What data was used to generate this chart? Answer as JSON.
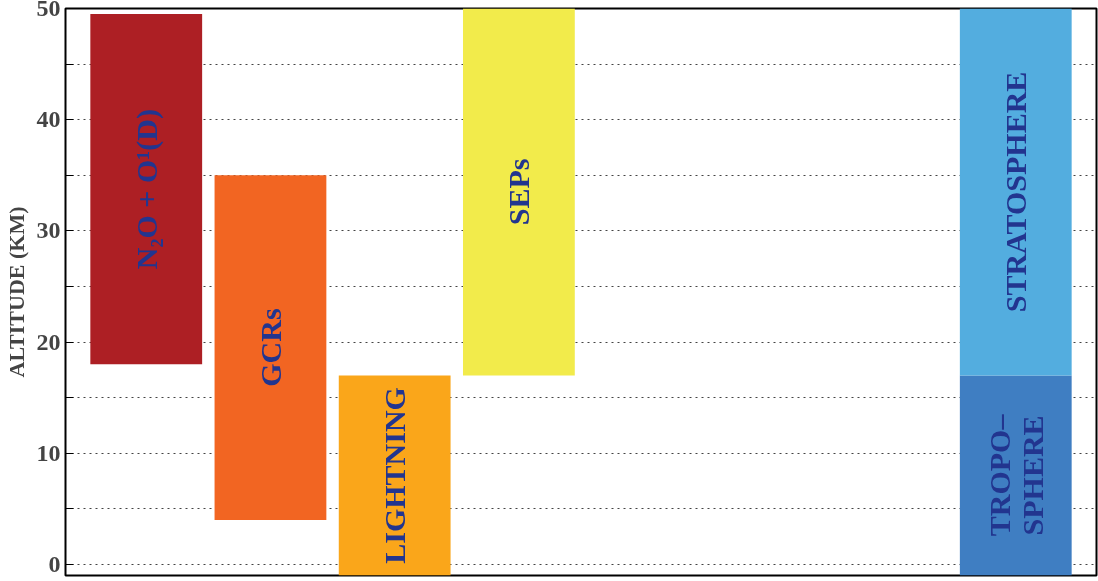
{
  "chart_data": {
    "type": "bar",
    "ylabel": "ALTITUDE (KM)",
    "ylim": [
      -1,
      50
    ],
    "categories": [
      null,
      null,
      null,
      null,
      null,
      null,
      null,
      null
    ],
    "yticks": [
      0,
      {
        "value": 5,
        "label": null
      },
      10,
      {
        "value": 15,
        "label": null
      },
      20,
      {
        "value": 25,
        "label": null
      },
      30,
      {
        "value": 35,
        "label": null
      },
      40,
      {
        "value": 45,
        "label": null
      },
      50
    ],
    "tick_labels": "y",
    "grid": "y",
    "series": [
      {
        "colors": [
          "#ad1f24",
          "#f26522",
          "#faa61a",
          "#f2eb4b",
          null,
          null,
          null,
          "#3f7ec2"
        ],
        "base": [
          18,
          4,
          -1,
          17,
          null,
          null,
          null,
          -1
        ],
        "values": [
          31.5,
          31,
          18,
          33,
          null,
          null,
          null,
          18
        ],
        "value_labels": [
          "N₂O + O¹(D)",
          "GCRs",
          "LIGHTNING",
          "SEPs",
          null,
          null,
          null,
          "TROPO–\nSPHERE"
        ]
      },
      {
        "color": "#53addf",
        "base": [
          null,
          null,
          null,
          null,
          null,
          null,
          null,
          17
        ],
        "values": [
          null,
          null,
          null,
          null,
          null,
          null,
          null,
          33
        ],
        "value_labels": [
          null,
          null,
          null,
          null,
          null,
          null,
          null,
          "STRATOSPHERE"
        ]
      }
    ]
  }
}
